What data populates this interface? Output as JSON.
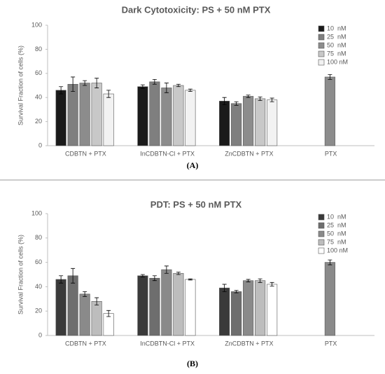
{
  "chart_data": [
    {
      "type": "bar",
      "title": "Dark Cytotoxicity: PS + 50 nM PTX",
      "caption": "(A)",
      "y_label": "Survival Fraction of cells (%)",
      "categories": [
        "CDBTN + PTX",
        "InCDBTN-Cl + PTX",
        "ZnCDBTN + PTX",
        "PTX"
      ],
      "ylim": [
        0,
        100
      ],
      "yticks": [
        0,
        20,
        40,
        60,
        80,
        100
      ],
      "grid": false,
      "legend": "top-right",
      "series": [
        {
          "name": "10  nM",
          "color": "#1a1a1a",
          "values": [
            46,
            49,
            37,
            null
          ],
          "errors": [
            3,
            1.5,
            3,
            null
          ]
        },
        {
          "name": "25  nM",
          "color": "#7f7f7f",
          "values": [
            51,
            53,
            35,
            null
          ],
          "errors": [
            6,
            2,
            1.5,
            null
          ]
        },
        {
          "name": "50  nM",
          "color": "#8c8c8c",
          "values": [
            52,
            48,
            41,
            57
          ],
          "errors": [
            2,
            4,
            1,
            2
          ]
        },
        {
          "name": "75  nM",
          "color": "#c8c8c8",
          "values": [
            52,
            50,
            39,
            null
          ],
          "errors": [
            4,
            1,
            1.5,
            null
          ]
        },
        {
          "name": "100 nM",
          "color": "#f2f2f2",
          "values": [
            43,
            46,
            38,
            null
          ],
          "errors": [
            3,
            1,
            1.5,
            null
          ]
        }
      ]
    },
    {
      "type": "bar",
      "title": "PDT: PS + 50 nM PTX",
      "caption": "(B)",
      "y_label": "Survival Fraction of cells (%)",
      "categories": [
        "CDBTN + PTX",
        "InCDBTN-Cl + PTX",
        "ZnCDBTN + PTX",
        "PTX"
      ],
      "ylim": [
        0,
        100
      ],
      "yticks": [
        0,
        20,
        40,
        60,
        80,
        100
      ],
      "grid": false,
      "legend": "top-right",
      "series": [
        {
          "name": "10  nM",
          "color": "#3a3a3a",
          "values": [
            46,
            49,
            39,
            null
          ],
          "errors": [
            3,
            1,
            3,
            null
          ]
        },
        {
          "name": "25  nM",
          "color": "#6e6e6e",
          "values": [
            49,
            47,
            36,
            null
          ],
          "errors": [
            6,
            2,
            1,
            null
          ]
        },
        {
          "name": "50  nM",
          "color": "#8a8a8a",
          "values": [
            34,
            54,
            45,
            60
          ],
          "errors": [
            2,
            3,
            1,
            2
          ]
        },
        {
          "name": "75  nM",
          "color": "#bdbdbd",
          "values": [
            28,
            51,
            45,
            null
          ],
          "errors": [
            3,
            1,
            1.5,
            null
          ]
        },
        {
          "name": "100 nM",
          "color": "#ffffff",
          "values": [
            18,
            46,
            42,
            null
          ],
          "errors": [
            2.5,
            0.5,
            1.5,
            null
          ]
        }
      ]
    }
  ]
}
